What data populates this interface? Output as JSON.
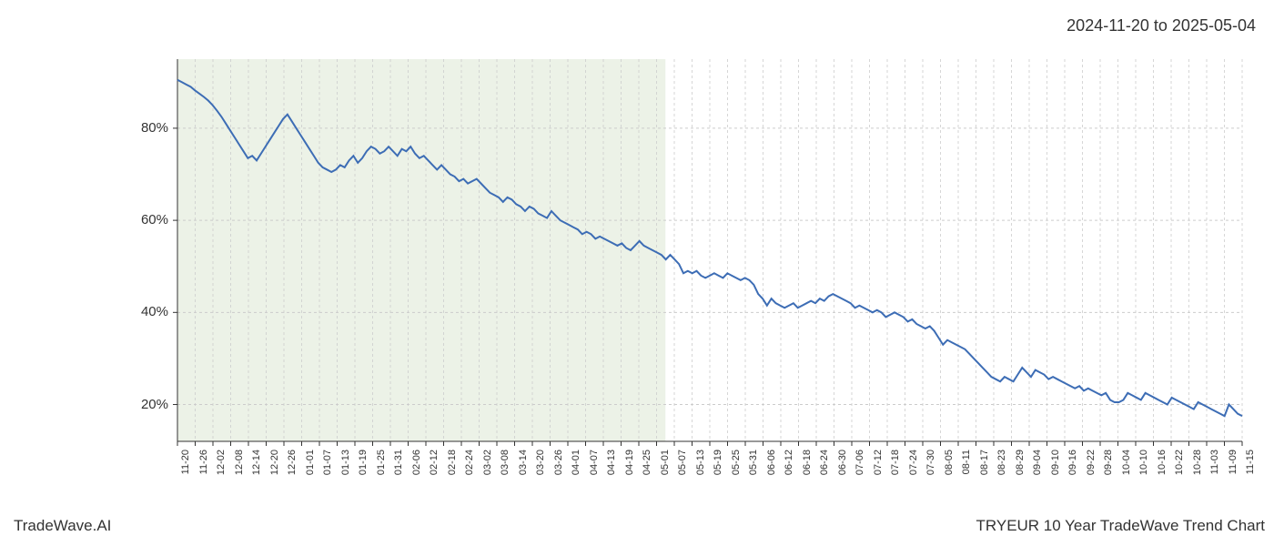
{
  "date_range": "2024-11-20 to 2025-05-04",
  "footer_left": "TradeWave.AI",
  "footer_right": "TRYEUR 10 Year TradeWave Trend Chart",
  "chart": {
    "type": "line",
    "background_color": "#ffffff",
    "highlight_fill": "#dce8d4",
    "highlight_opacity": 0.55,
    "grid_color": "#cccccc",
    "grid_style": "dashed",
    "axis_color": "#333333",
    "line_color": "#3d6db5",
    "line_width": 2,
    "ylim": [
      12,
      95
    ],
    "yticks": [
      20,
      40,
      60,
      80
    ],
    "ytick_labels": [
      "20%",
      "40%",
      "60%",
      "80%"
    ],
    "xlabels": [
      "11-20",
      "11-26",
      "12-02",
      "12-08",
      "12-14",
      "12-20",
      "12-26",
      "01-01",
      "01-07",
      "01-13",
      "01-19",
      "01-25",
      "01-31",
      "02-06",
      "02-12",
      "02-18",
      "02-24",
      "03-02",
      "03-08",
      "03-14",
      "03-20",
      "03-26",
      "04-01",
      "04-07",
      "04-13",
      "04-19",
      "04-25",
      "05-01",
      "05-07",
      "05-13",
      "05-19",
      "05-25",
      "05-31",
      "06-06",
      "06-12",
      "06-18",
      "06-24",
      "06-30",
      "07-06",
      "07-12",
      "07-18",
      "07-24",
      "07-30",
      "08-05",
      "08-11",
      "08-17",
      "08-23",
      "08-29",
      "09-04",
      "09-10",
      "09-16",
      "09-22",
      "09-28",
      "10-04",
      "10-10",
      "10-16",
      "10-22",
      "10-28",
      "11-03",
      "11-09",
      "11-15"
    ],
    "highlight_range_end_index": 27.5,
    "series": [
      90.5,
      90.0,
      89.5,
      89.0,
      88.2,
      87.5,
      86.8,
      86.0,
      85.0,
      83.8,
      82.5,
      81.0,
      79.5,
      78.0,
      76.5,
      75.0,
      73.5,
      74.0,
      73.0,
      74.5,
      76.0,
      77.5,
      79.0,
      80.5,
      82.0,
      83.0,
      81.5,
      80.0,
      78.5,
      77.0,
      75.5,
      74.0,
      72.5,
      71.5,
      71.0,
      70.5,
      71.0,
      72.0,
      71.5,
      73.0,
      74.0,
      72.5,
      73.5,
      75.0,
      76.0,
      75.5,
      74.5,
      75.0,
      76.0,
      75.0,
      74.0,
      75.5,
      75.0,
      76.0,
      74.5,
      73.5,
      74.0,
      73.0,
      72.0,
      71.0,
      72.0,
      71.0,
      70.0,
      69.5,
      68.5,
      69.0,
      68.0,
      68.5,
      69.0,
      68.0,
      67.0,
      66.0,
      65.5,
      65.0,
      64.0,
      65.0,
      64.5,
      63.5,
      63.0,
      62.0,
      63.0,
      62.5,
      61.5,
      61.0,
      60.5,
      62.0,
      61.0,
      60.0,
      59.5,
      59.0,
      58.5,
      58.0,
      57.0,
      57.5,
      57.0,
      56.0,
      56.5,
      56.0,
      55.5,
      55.0,
      54.5,
      55.0,
      54.0,
      53.5,
      54.5,
      55.5,
      54.5,
      54.0,
      53.5,
      53.0,
      52.5,
      51.5,
      52.5,
      51.5,
      50.5,
      48.5,
      49.0,
      48.5,
      49.0,
      48.0,
      47.5,
      48.0,
      48.5,
      48.0,
      47.5,
      48.5,
      48.0,
      47.5,
      47.0,
      47.5,
      47.0,
      46.0,
      44.0,
      43.0,
      41.5,
      43.0,
      42.0,
      41.5,
      41.0,
      41.5,
      42.0,
      41.0,
      41.5,
      42.0,
      42.5,
      42.0,
      43.0,
      42.5,
      43.5,
      44.0,
      43.5,
      43.0,
      42.5,
      42.0,
      41.0,
      41.5,
      41.0,
      40.5,
      40.0,
      40.5,
      40.0,
      39.0,
      39.5,
      40.0,
      39.5,
      39.0,
      38.0,
      38.5,
      37.5,
      37.0,
      36.5,
      37.0,
      36.0,
      34.5,
      33.0,
      34.0,
      33.5,
      33.0,
      32.5,
      32.0,
      31.0,
      30.0,
      29.0,
      28.0,
      27.0,
      26.0,
      25.5,
      25.0,
      26.0,
      25.5,
      25.0,
      26.5,
      28.0,
      27.0,
      26.0,
      27.5,
      27.0,
      26.5,
      25.5,
      26.0,
      25.5,
      25.0,
      24.5,
      24.0,
      23.5,
      24.0,
      23.0,
      23.5,
      23.0,
      22.5,
      22.0,
      22.5,
      21.0,
      20.5,
      20.5,
      21.0,
      22.5,
      22.0,
      21.5,
      21.0,
      22.5,
      22.0,
      21.5,
      21.0,
      20.5,
      20.0,
      21.5,
      21.0,
      20.5,
      20.0,
      19.5,
      19.0,
      20.5,
      20.0,
      19.5,
      19.0,
      18.5,
      18.0,
      17.5,
      20.0,
      19.0,
      18.0,
      17.5
    ]
  }
}
